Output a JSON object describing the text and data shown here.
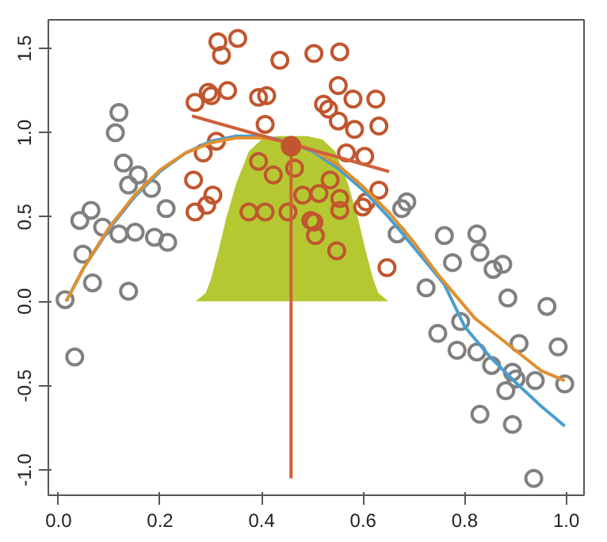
{
  "chart_data": {
    "type": "scatter",
    "xlim": [
      -0.02,
      1.035
    ],
    "ylim": [
      -1.15,
      1.67
    ],
    "xticks": [
      {
        "value": 0,
        "label": "0.0"
      },
      {
        "value": 0.2,
        "label": "0.2"
      },
      {
        "value": 0.4,
        "label": "0.4"
      },
      {
        "value": 0.6,
        "label": "0.6"
      },
      {
        "value": 0.8,
        "label": "0.8"
      },
      {
        "value": 1,
        "label": "1.0"
      }
    ],
    "yticks": [
      {
        "value": -1,
        "label": "-1.0"
      },
      {
        "value": -0.5,
        "label": "-0.5"
      },
      {
        "value": 0,
        "label": "0.0"
      },
      {
        "value": 0.5,
        "label": "0.5"
      },
      {
        "value": 1,
        "label": "1.0"
      },
      {
        "value": 1.5,
        "label": "1.5"
      }
    ],
    "grid": false,
    "series": [
      {
        "type": "area",
        "color": "#b5c832",
        "x": [
          0.27,
          0.29,
          0.3,
          0.315,
          0.33,
          0.35,
          0.375,
          0.4,
          0.43,
          0.458,
          0.49,
          0.52,
          0.545,
          0.57,
          0.59,
          0.605,
          0.62,
          0.63,
          0.65
        ],
        "values": [
          0,
          0.05,
          0.13,
          0.3,
          0.49,
          0.7,
          0.89,
          0.96,
          0.98,
          0.98,
          0.98,
          0.96,
          0.89,
          0.7,
          0.49,
          0.3,
          0.13,
          0.05,
          0
        ]
      },
      {
        "marker": "circle",
        "color": "#808080",
        "x": [
          0.013,
          0.032,
          0.067,
          0.138,
          0.042,
          0.064,
          0.087,
          0.119,
          0.151,
          0.189,
          0.215,
          0.212,
          0.183,
          0.157,
          0.138,
          0.128,
          0.112,
          0.119,
          0.048,
          0.686,
          0.676,
          0.667,
          0.76,
          0.824,
          0.83,
          0.776,
          0.856,
          0.875,
          0.724,
          0.747,
          0.792,
          0.785,
          0.824,
          0.853,
          0.885,
          0.962,
          0.907,
          0.894,
          0.901,
          0.881,
          0.939,
          0.984,
          0.997,
          0.83,
          0.894,
          0.936
        ],
        "values": [
          0.01,
          -0.33,
          0.11,
          0.06,
          0.48,
          0.54,
          0.44,
          0.4,
          0.41,
          0.38,
          0.35,
          0.55,
          0.67,
          0.75,
          0.69,
          0.82,
          1.0,
          1.12,
          0.28,
          0.59,
          0.55,
          0.4,
          0.39,
          0.4,
          0.29,
          0.23,
          0.19,
          0.22,
          0.08,
          -0.19,
          -0.12,
          -0.29,
          -0.3,
          -0.38,
          0.02,
          -0.03,
          -0.25,
          -0.42,
          -0.46,
          -0.53,
          -0.47,
          -0.27,
          -0.49,
          -0.67,
          -0.73,
          -1.05
        ]
      },
      {
        "marker": "circle",
        "color": "#c0562f",
        "x": [
          0.314,
          0.321,
          0.353,
          0.436,
          0.269,
          0.295,
          0.301,
          0.333,
          0.394,
          0.41,
          0.407,
          0.285,
          0.311,
          0.266,
          0.269,
          0.292,
          0.304,
          0.394,
          0.423,
          0.465,
          0.375,
          0.407,
          0.452,
          0.481,
          0.503,
          0.503,
          0.554,
          0.551,
          0.58,
          0.625,
          0.522,
          0.532,
          0.551,
          0.583,
          0.631,
          0.567,
          0.603,
          0.535,
          0.631,
          0.513,
          0.554,
          0.554,
          0.599,
          0.606,
          0.497,
          0.506,
          0.548,
          0.647
        ],
        "values": [
          1.54,
          1.46,
          1.56,
          1.43,
          1.18,
          1.24,
          1.22,
          1.25,
          1.21,
          1.22,
          1.05,
          0.88,
          0.95,
          0.72,
          0.53,
          0.57,
          0.63,
          0.83,
          0.75,
          0.79,
          0.53,
          0.53,
          0.53,
          0.63,
          0.47,
          1.47,
          1.48,
          1.28,
          1.2,
          1.2,
          1.17,
          1.14,
          1.07,
          1.02,
          1.04,
          0.88,
          0.86,
          0.72,
          0.66,
          0.64,
          0.61,
          0.54,
          0.56,
          0.59,
          0.48,
          0.39,
          0.3,
          0.2
        ]
      },
      {
        "type": "line",
        "color": "#4a9ed0",
        "x": [
          0.015,
          0.05,
          0.1,
          0.15,
          0.2,
          0.25,
          0.3,
          0.35,
          0.4,
          0.45,
          0.5,
          0.55,
          0.6,
          0.65,
          0.7,
          0.76,
          0.8,
          0.85,
          0.9,
          0.95,
          0.997
        ],
        "values": [
          0.0,
          0.2,
          0.43,
          0.62,
          0.77,
          0.88,
          0.95,
          0.98,
          0.98,
          0.95,
          0.89,
          0.79,
          0.66,
          0.5,
          0.32,
          0.1,
          -0.15,
          -0.33,
          -0.48,
          -0.62,
          -0.74
        ]
      },
      {
        "type": "line",
        "color": "#e09030",
        "x": [
          0.015,
          0.05,
          0.1,
          0.15,
          0.2,
          0.25,
          0.3,
          0.35,
          0.4,
          0.45,
          0.5,
          0.55,
          0.6,
          0.65,
          0.7,
          0.75,
          0.82,
          0.9,
          0.95,
          0.997
        ],
        "values": [
          0.0,
          0.2,
          0.44,
          0.63,
          0.78,
          0.88,
          0.94,
          0.97,
          0.97,
          0.95,
          0.9,
          0.81,
          0.68,
          0.53,
          0.35,
          0.15,
          -0.1,
          -0.29,
          -0.41,
          -0.47
        ]
      },
      {
        "type": "line",
        "color": "#d0603a",
        "x": [
          0.263,
          0.651
        ],
        "values": [
          1.1,
          0.77
        ]
      },
      {
        "type": "line",
        "color": "#d0603a",
        "x": [
          0.458,
          0.458
        ],
        "values": [
          0.92,
          -1.05
        ]
      },
      {
        "type": "bubble",
        "color": "#c0562f",
        "x": [
          0.458
        ],
        "values": [
          0.92
        ],
        "sizes": [
          1
        ]
      }
    ]
  }
}
